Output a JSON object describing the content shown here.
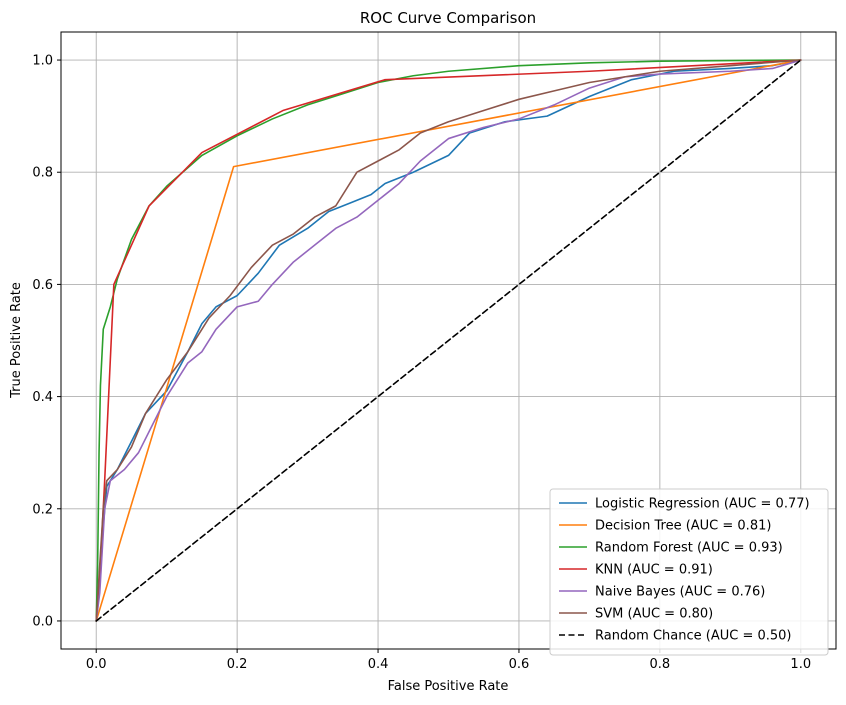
{
  "chart_data": {
    "type": "line",
    "title": "ROC Curve Comparison",
    "xlabel": "False Positive Rate",
    "ylabel": "True Positive Rate",
    "xlim": [
      -0.05,
      1.05
    ],
    "ylim": [
      -0.05,
      1.05
    ],
    "grid": true,
    "legend_position": "bottom-right",
    "x_ticks": [
      "0.0",
      "0.2",
      "0.4",
      "0.6",
      "0.8",
      "1.0"
    ],
    "y_ticks": [
      "0.0",
      "0.2",
      "0.4",
      "0.6",
      "0.8",
      "1.0"
    ],
    "series": [
      {
        "name": "Logistic Regression (AUC = 0.77)",
        "color": "#1f77b4",
        "dash": false,
        "points": [
          [
            0,
            0
          ],
          [
            0.005,
            0.08
          ],
          [
            0.01,
            0.17
          ],
          [
            0.015,
            0.24
          ],
          [
            0.03,
            0.27
          ],
          [
            0.05,
            0.32
          ],
          [
            0.07,
            0.37
          ],
          [
            0.1,
            0.41
          ],
          [
            0.13,
            0.48
          ],
          [
            0.15,
            0.53
          ],
          [
            0.17,
            0.56
          ],
          [
            0.2,
            0.58
          ],
          [
            0.23,
            0.62
          ],
          [
            0.26,
            0.67
          ],
          [
            0.3,
            0.7
          ],
          [
            0.33,
            0.73
          ],
          [
            0.36,
            0.745
          ],
          [
            0.39,
            0.76
          ],
          [
            0.41,
            0.78
          ],
          [
            0.45,
            0.8
          ],
          [
            0.5,
            0.83
          ],
          [
            0.53,
            0.87
          ],
          [
            0.58,
            0.89
          ],
          [
            0.64,
            0.9
          ],
          [
            0.7,
            0.935
          ],
          [
            0.76,
            0.965
          ],
          [
            0.82,
            0.98
          ],
          [
            0.9,
            0.985
          ],
          [
            0.96,
            0.99
          ],
          [
            1,
            1
          ]
        ]
      },
      {
        "name": "Decision Tree (AUC = 0.81)",
        "color": "#ff7f0e",
        "dash": false,
        "points": [
          [
            0,
            0
          ],
          [
            0.195,
            0.81
          ],
          [
            1,
            1
          ]
        ]
      },
      {
        "name": "Random Forest (AUC = 0.93)",
        "color": "#2ca02c",
        "dash": false,
        "points": [
          [
            0,
            0
          ],
          [
            0.002,
            0.1
          ],
          [
            0.004,
            0.3
          ],
          [
            0.006,
            0.42
          ],
          [
            0.01,
            0.52
          ],
          [
            0.02,
            0.56
          ],
          [
            0.03,
            0.61
          ],
          [
            0.05,
            0.68
          ],
          [
            0.075,
            0.74
          ],
          [
            0.1,
            0.775
          ],
          [
            0.15,
            0.83
          ],
          [
            0.2,
            0.865
          ],
          [
            0.25,
            0.895
          ],
          [
            0.3,
            0.92
          ],
          [
            0.35,
            0.94
          ],
          [
            0.4,
            0.96
          ],
          [
            0.45,
            0.972
          ],
          [
            0.5,
            0.98
          ],
          [
            0.6,
            0.99
          ],
          [
            0.7,
            0.995
          ],
          [
            0.8,
            0.998
          ],
          [
            0.9,
            0.999
          ],
          [
            1,
            1
          ]
        ]
      },
      {
        "name": "KNN (AUC = 0.91)",
        "color": "#d62728",
        "dash": false,
        "points": [
          [
            0,
            0
          ],
          [
            0.005,
            0.08
          ],
          [
            0.012,
            0.25
          ],
          [
            0.025,
            0.6
          ],
          [
            0.075,
            0.74
          ],
          [
            0.15,
            0.835
          ],
          [
            0.265,
            0.91
          ],
          [
            0.41,
            0.965
          ],
          [
            0.7,
            0.98
          ],
          [
            1,
            1
          ]
        ]
      },
      {
        "name": "Naive Bayes (AUC = 0.76)",
        "color": "#9467bd",
        "dash": false,
        "points": [
          [
            0,
            0
          ],
          [
            0.005,
            0.05
          ],
          [
            0.012,
            0.2
          ],
          [
            0.02,
            0.25
          ],
          [
            0.04,
            0.27
          ],
          [
            0.06,
            0.3
          ],
          [
            0.08,
            0.35
          ],
          [
            0.1,
            0.4
          ],
          [
            0.13,
            0.46
          ],
          [
            0.15,
            0.48
          ],
          [
            0.17,
            0.52
          ],
          [
            0.2,
            0.56
          ],
          [
            0.23,
            0.57
          ],
          [
            0.25,
            0.6
          ],
          [
            0.28,
            0.64
          ],
          [
            0.31,
            0.67
          ],
          [
            0.34,
            0.7
          ],
          [
            0.37,
            0.72
          ],
          [
            0.4,
            0.75
          ],
          [
            0.43,
            0.78
          ],
          [
            0.46,
            0.82
          ],
          [
            0.5,
            0.86
          ],
          [
            0.55,
            0.88
          ],
          [
            0.6,
            0.895
          ],
          [
            0.65,
            0.92
          ],
          [
            0.7,
            0.95
          ],
          [
            0.75,
            0.97
          ],
          [
            0.8,
            0.975
          ],
          [
            0.9,
            0.98
          ],
          [
            0.96,
            0.985
          ],
          [
            1,
            1
          ]
        ]
      },
      {
        "name": "SVM (AUC = 0.80)",
        "color": "#8c564b",
        "dash": false,
        "points": [
          [
            0,
            0
          ],
          [
            0.005,
            0.1
          ],
          [
            0.01,
            0.2
          ],
          [
            0.015,
            0.25
          ],
          [
            0.03,
            0.27
          ],
          [
            0.05,
            0.31
          ],
          [
            0.07,
            0.37
          ],
          [
            0.1,
            0.43
          ],
          [
            0.13,
            0.48
          ],
          [
            0.16,
            0.54
          ],
          [
            0.19,
            0.58
          ],
          [
            0.22,
            0.63
          ],
          [
            0.25,
            0.67
          ],
          [
            0.28,
            0.69
          ],
          [
            0.31,
            0.72
          ],
          [
            0.34,
            0.74
          ],
          [
            0.37,
            0.8
          ],
          [
            0.4,
            0.82
          ],
          [
            0.43,
            0.84
          ],
          [
            0.46,
            0.87
          ],
          [
            0.5,
            0.89
          ],
          [
            0.55,
            0.91
          ],
          [
            0.6,
            0.93
          ],
          [
            0.65,
            0.945
          ],
          [
            0.7,
            0.96
          ],
          [
            0.75,
            0.97
          ],
          [
            0.8,
            0.98
          ],
          [
            0.9,
            0.99
          ],
          [
            1,
            1
          ]
        ]
      },
      {
        "name": "Random Chance (AUC = 0.50)",
        "color": "#000000",
        "dash": true,
        "points": [
          [
            0,
            0
          ],
          [
            1,
            1
          ]
        ]
      }
    ]
  }
}
